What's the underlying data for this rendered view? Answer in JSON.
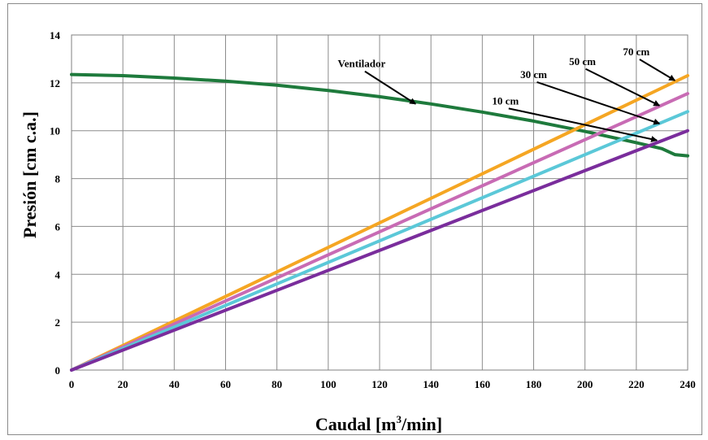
{
  "chart_data": {
    "type": "line",
    "xlabel": "Caudal [m³/min]",
    "xlabel_parts": {
      "pre": "Caudal [m",
      "sup": "3",
      "post": "/min]"
    },
    "ylabel": "Presión [cm c.a.]",
    "xlim": [
      0,
      240
    ],
    "ylim": [
      0,
      14
    ],
    "x_ticks": [
      0,
      20,
      40,
      60,
      80,
      100,
      120,
      140,
      160,
      180,
      200,
      220,
      240
    ],
    "y_ticks": [
      0,
      2,
      4,
      6,
      8,
      10,
      12,
      14
    ],
    "grid": true,
    "series": [
      {
        "name": "Ventilador",
        "color": "#1e7a3c",
        "x": [
          0,
          20,
          40,
          60,
          80,
          100,
          120,
          140,
          160,
          180,
          200,
          220,
          230,
          235,
          240
        ],
        "y": [
          12.35,
          12.3,
          12.2,
          12.07,
          11.9,
          11.68,
          11.42,
          11.12,
          10.78,
          10.4,
          9.97,
          9.5,
          9.25,
          9.0,
          8.95
        ]
      },
      {
        "name": "70 cm",
        "color": "#f5a623",
        "x": [
          0,
          240
        ],
        "y": [
          0,
          12.3
        ]
      },
      {
        "name": "50 cm",
        "color": "#c86bb4",
        "x": [
          0,
          240
        ],
        "y": [
          0,
          11.55
        ]
      },
      {
        "name": "30 cm",
        "color": "#5bc8d8",
        "x": [
          0,
          240
        ],
        "y": [
          0,
          10.8
        ]
      },
      {
        "name": "10 cm",
        "color": "#7a2d9c",
        "x": [
          0,
          240
        ],
        "y": [
          0,
          10.0
        ]
      }
    ],
    "annotations": [
      {
        "text": "Ventilador",
        "series": "Ventilador",
        "label_at": [
          113,
          12.65
        ],
        "arrow_to": [
          134,
          11.12
        ]
      },
      {
        "text": "70 cm",
        "series": "70 cm",
        "label_at": [
          220,
          13.15
        ],
        "arrow_to": [
          235,
          12.1
        ]
      },
      {
        "text": "50 cm",
        "series": "50 cm",
        "label_at": [
          199,
          12.75
        ],
        "arrow_to": [
          229,
          11.05
        ]
      },
      {
        "text": "30 cm",
        "series": "30 cm",
        "label_at": [
          180,
          12.2
        ],
        "arrow_to": [
          229,
          10.3
        ]
      },
      {
        "text": "10 cm",
        "series": "10 cm",
        "label_at": [
          169,
          11.1
        ],
        "arrow_to": [
          228,
          9.6
        ]
      }
    ]
  }
}
